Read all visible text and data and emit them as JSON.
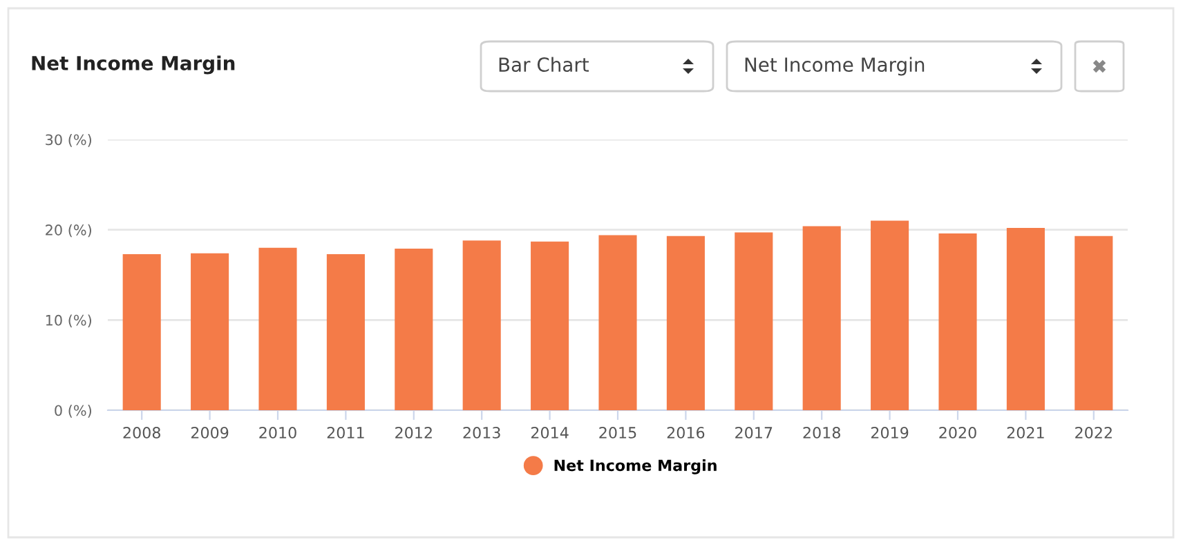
{
  "chart_data": {
    "type": "bar",
    "title": "Net Income Margin",
    "annotations": [
      "Bar Chart",
      "Net Income Margin"
    ],
    "categories": [
      "2008",
      "2009",
      "2010",
      "2011",
      "2012",
      "2013",
      "2014",
      "2015",
      "2016",
      "2017",
      "2018",
      "2019",
      "2020",
      "2021",
      "2022"
    ],
    "series": [
      {
        "name": "Net Income Margin",
        "color": "#f47b48",
        "values": [
          17.3,
          17.4,
          18.0,
          17.3,
          17.9,
          18.8,
          18.7,
          19.4,
          19.3,
          19.7,
          20.4,
          21.0,
          19.6,
          20.2,
          19.3
        ]
      }
    ],
    "ylim": [
      0,
      30
    ],
    "yticks": [
      {
        "value": 0,
        "label": "0 (%)"
      },
      {
        "value": 10,
        "label": "10 (%)"
      },
      {
        "value": 20,
        "label": "20 (%)"
      },
      {
        "value": 30,
        "label": "30 (%)"
      }
    ],
    "grid": "y",
    "legend": "bottom"
  }
}
